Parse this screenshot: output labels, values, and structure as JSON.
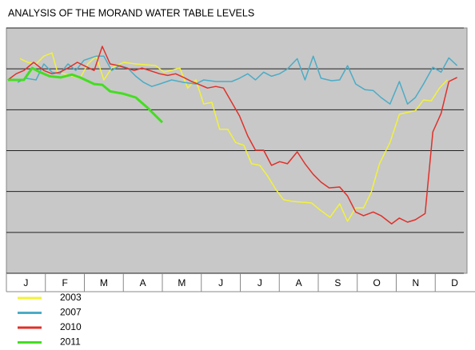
{
  "chart_data": {
    "type": "line",
    "title": "ANALYSIS OF THE MORAND WATER TABLE LEVELS",
    "categories": [
      "J",
      "F",
      "M",
      "A",
      "M",
      "J",
      "J",
      "A",
      "S",
      "O",
      "N",
      "D"
    ],
    "xlim": [
      0,
      12
    ],
    "ylim": [
      0,
      6
    ],
    "yticks": [
      0,
      1,
      2,
      3,
      4,
      5,
      6
    ],
    "grid": true,
    "series": [
      {
        "name": "2003",
        "color": "#f2f23a",
        "x": [
          0.35,
          0.55,
          0.76,
          0.96,
          1.17,
          1.31,
          1.48,
          1.89,
          2.09,
          2.3,
          2.5,
          2.7,
          3.01,
          3.32,
          3.83,
          4.04,
          4.45,
          4.65,
          4.86,
          5.06,
          5.27,
          5.47,
          5.68,
          5.88,
          6.09,
          6.29,
          6.5,
          6.7,
          6.91,
          7.11,
          7.32,
          7.83,
          8.03,
          8.3,
          8.55,
          8.75,
          8.96,
          9.16,
          9.36,
          9.57,
          9.84,
          10.08,
          10.49,
          10.7,
          10.9,
          11.11,
          11.31
        ],
        "values": [
          5.25,
          5.16,
          5.12,
          5.31,
          5.39,
          4.92,
          4.88,
          4.77,
          5.12,
          5.31,
          4.73,
          5.02,
          5.16,
          5.12,
          5.08,
          4.92,
          5.02,
          4.53,
          4.73,
          4.14,
          4.18,
          3.52,
          3.52,
          3.2,
          3.13,
          2.68,
          2.64,
          2.38,
          2.05,
          1.8,
          1.76,
          1.72,
          1.56,
          1.37,
          1.7,
          1.27,
          1.6,
          1.6,
          1.99,
          2.68,
          3.2,
          3.89,
          3.98,
          4.24,
          4.22,
          4.53,
          4.73
        ]
      },
      {
        "name": "2007",
        "color": "#4bacc6",
        "x": [
          0.29,
          0.49,
          0.76,
          0.96,
          1.17,
          1.37,
          1.58,
          1.78,
          1.99,
          2.3,
          2.5,
          2.7,
          2.91,
          3.11,
          3.32,
          3.52,
          3.73,
          3.93,
          4.24,
          4.55,
          4.86,
          5.06,
          5.37,
          5.78,
          5.98,
          6.19,
          6.39,
          6.6,
          6.8,
          7.01,
          7.21,
          7.46,
          7.66,
          7.87,
          8.07,
          8.34,
          8.55,
          8.75,
          8.96,
          9.2,
          9.41,
          9.61,
          9.84,
          10.08,
          10.29,
          10.49,
          10.7,
          10.94,
          11.15,
          11.35,
          11.56
        ],
        "values": [
          4.67,
          4.77,
          4.73,
          5.12,
          4.92,
          4.88,
          5.12,
          4.96,
          5.21,
          5.31,
          5.31,
          4.96,
          5.08,
          5.02,
          4.82,
          4.67,
          4.57,
          4.63,
          4.73,
          4.67,
          4.63,
          4.73,
          4.69,
          4.69,
          4.77,
          4.88,
          4.73,
          4.92,
          4.82,
          4.88,
          5.0,
          5.25,
          4.73,
          5.31,
          4.77,
          4.71,
          4.73,
          5.08,
          4.63,
          4.49,
          4.47,
          4.3,
          4.14,
          4.69,
          4.14,
          4.3,
          4.63,
          5.04,
          4.92,
          5.27,
          5.08
        ]
      },
      {
        "name": "2010",
        "color": "#e0302a",
        "x": [
          0.04,
          0.25,
          0.45,
          0.7,
          0.96,
          1.17,
          1.37,
          1.58,
          1.82,
          1.99,
          2.25,
          2.46,
          2.66,
          2.87,
          3.28,
          3.48,
          3.93,
          4.14,
          4.34,
          4.55,
          4.75,
          4.96,
          5.16,
          5.37,
          5.57,
          5.78,
          5.98,
          6.19,
          6.39,
          6.6,
          6.8,
          7.01,
          7.21,
          7.46,
          7.66,
          7.87,
          8.07,
          8.28,
          8.55,
          8.75,
          8.96,
          9.16,
          9.41,
          9.61,
          9.88,
          10.08,
          10.29,
          10.49,
          10.74,
          10.94,
          11.15,
          11.35,
          11.56
        ],
        "values": [
          4.73,
          4.88,
          4.96,
          5.16,
          4.96,
          4.88,
          4.92,
          5.02,
          5.16,
          5.08,
          4.96,
          5.55,
          5.12,
          5.08,
          4.96,
          5.02,
          4.88,
          4.84,
          4.88,
          4.79,
          4.69,
          4.61,
          4.53,
          4.57,
          4.53,
          4.18,
          3.85,
          3.36,
          3.01,
          3.01,
          2.64,
          2.73,
          2.68,
          2.97,
          2.68,
          2.42,
          2.23,
          2.09,
          2.11,
          1.89,
          1.5,
          1.41,
          1.5,
          1.41,
          1.21,
          1.35,
          1.25,
          1.31,
          1.46,
          3.46,
          3.91,
          4.69,
          4.79
        ]
      },
      {
        "name": "2011",
        "color": "#44dd22",
        "x": [
          0.04,
          0.45,
          0.66,
          0.86,
          1.11,
          1.39,
          1.68,
          1.89,
          2.25,
          2.46,
          2.66,
          3.01,
          3.32,
          3.63,
          4.0
        ],
        "values": [
          4.73,
          4.73,
          5.02,
          4.92,
          4.82,
          4.79,
          4.86,
          4.79,
          4.63,
          4.61,
          4.45,
          4.39,
          4.3,
          4.04,
          3.69
        ]
      }
    ]
  }
}
